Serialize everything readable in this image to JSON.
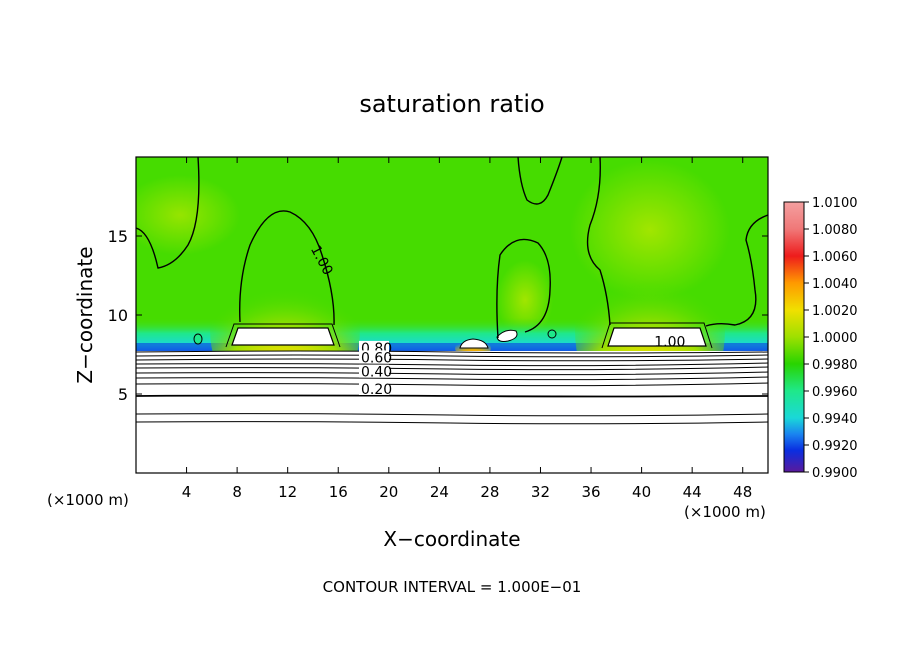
{
  "chart_data": {
    "type": "heatmap",
    "title": "saturation ratio",
    "xlabel": "X−coordinate",
    "ylabel": "Z−coordinate",
    "x_unit_left": "(×1000 m)",
    "x_unit_right": "(×1000 m)",
    "footer": "CONTOUR INTERVAL = 1.000E−01",
    "xlim": [
      0,
      50
    ],
    "ylim": [
      0,
      20
    ],
    "x_ticks": [
      4,
      8,
      12,
      16,
      20,
      24,
      28,
      32,
      36,
      40,
      44,
      48
    ],
    "y_ticks": [
      5,
      10,
      15
    ],
    "colorbar": {
      "min": 0.99,
      "max": 1.01,
      "labels": [
        "1.0100",
        "1.0080",
        "1.0060",
        "1.0040",
        "1.0020",
        "1.0000",
        "0.9980",
        "0.9960",
        "0.9940",
        "0.9920",
        "0.9900"
      ],
      "colors": [
        "#f07878",
        "#ee1c1c",
        "#f05a0a",
        "#ff9a00",
        "#f0e000",
        "#9ee000",
        "#28d400",
        "#1fe88a",
        "#1ad8d8",
        "#1a84f0",
        "#0a2ee0",
        "#1a10b0",
        "#5a1a9c"
      ]
    },
    "contour_labels": [
      {
        "text": "1.00",
        "x": 13.8,
        "z": 14.2
      },
      {
        "text": "1.00",
        "x": 41.0,
        "z": 8.0
      },
      {
        "text": "0.80",
        "x": 17.8,
        "z": 7.6
      },
      {
        "text": "0.60",
        "x": 17.8,
        "z": 7.0
      },
      {
        "text": "0.40",
        "x": 17.8,
        "z": 6.1
      },
      {
        "text": "0.20",
        "x": 17.8,
        "z": 5.0
      }
    ],
    "features": {
      "dry_layer_top_z": 7.8,
      "cloud_cells": [
        {
          "x_center": 11.8,
          "x_half_width": 3.5,
          "z_base": 8.0,
          "peak_ratio": 1.01
        },
        {
          "x_center": 40.5,
          "x_half_width": 3.3,
          "z_base": 8.0,
          "peak_ratio": 1.01
        },
        {
          "x_center": 26.8,
          "x_half_width": 1.2,
          "z_base": 7.8,
          "peak_ratio": 1.006
        }
      ]
    },
    "grid": false
  }
}
